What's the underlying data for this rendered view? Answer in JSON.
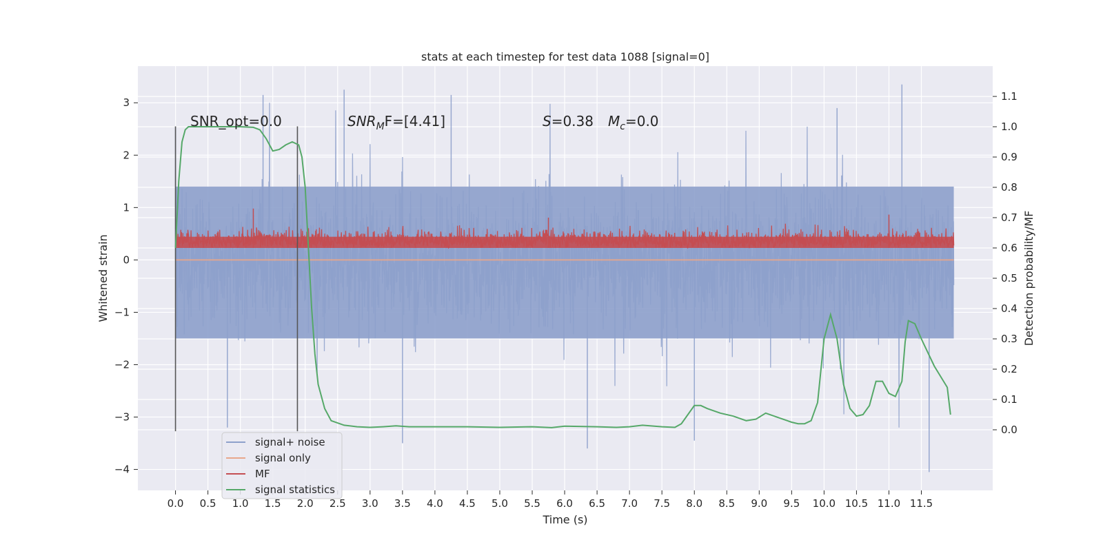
{
  "chart_data": {
    "type": "line",
    "title": "stats at each timestep for test data 1088 [signal=0]",
    "xlabel": "Time (s)",
    "ylabel": "Whitened strain",
    "ylabel_right": "Detection probability/MF",
    "xlim": [
      -0.58,
      12.6
    ],
    "ylim": [
      -4.4,
      3.7
    ],
    "ylim_right": [
      -0.2,
      1.2
    ],
    "x_ticks": [
      0.0,
      0.5,
      1.0,
      1.5,
      2.0,
      2.5,
      3.0,
      3.5,
      4.0,
      4.5,
      5.0,
      5.5,
      6.0,
      6.5,
      7.0,
      7.5,
      8.0,
      8.5,
      9.0,
      9.5,
      10.0,
      10.5,
      11.0,
      11.5
    ],
    "x_tick_labels": [
      "0.0",
      "0.5",
      "1.0",
      "1.5",
      "2.0",
      "2.5",
      "3.0",
      "3.5",
      "4.0",
      "4.5",
      "5.0",
      "5.5",
      "6.0",
      "6.5",
      "7.0",
      "7.5",
      "8.0",
      "8.5",
      "9.0",
      "9.5",
      "10.0",
      "10.5",
      "11.0",
      "11.5"
    ],
    "y_ticks": [
      3,
      2,
      1,
      0,
      -1,
      -2,
      -3,
      -4
    ],
    "y_tick_labels": [
      "3",
      "2",
      "1",
      "0",
      "−1",
      "−2",
      "−3",
      "−4"
    ],
    "y_right_ticks": [
      1.1,
      1.0,
      0.9,
      0.8,
      0.7,
      0.6,
      0.5,
      0.4,
      0.3,
      0.2,
      0.1,
      0.0
    ],
    "y_right_tick_labels": [
      "1.1",
      "1.0",
      "0.9",
      "0.8",
      "0.7",
      "0.6",
      "0.5",
      "0.4",
      "0.3",
      "0.2",
      "0.1",
      "0.0"
    ],
    "grid": true,
    "legend_position": "lower-left",
    "annotations": [
      {
        "id": "snr-opt",
        "text": "SNR_opt=0.0"
      },
      {
        "id": "snr-mf",
        "text": "SNR",
        "sub": "M",
        "rest": "F=[4.41]"
      },
      {
        "id": "s-stat",
        "text": "S",
        "rest": "=0.38"
      },
      {
        "id": "mc-stat",
        "text": "M",
        "sub": "c",
        "rest": "=0.0"
      }
    ],
    "vertical_markers": [
      {
        "x": 0.0,
        "y_range": [
          -3.27,
          2.55
        ]
      },
      {
        "x": 1.88,
        "y_range": [
          -3.27,
          2.55
        ]
      }
    ],
    "series": [
      {
        "name": "signal+ noise",
        "color": "#8da0cb",
        "axis": "left",
        "style": "dense-noise",
        "x_range": [
          0.0,
          12.0
        ],
        "core_band": [
          -1.5,
          1.4
        ],
        "spike_extremes": [
          {
            "x": 0.0,
            "y": 2.55
          },
          {
            "x": 1.35,
            "y": 3.15
          },
          {
            "x": 2.6,
            "y": 3.25
          },
          {
            "x": 3.5,
            "y": -3.5
          },
          {
            "x": 4.25,
            "y": 3.15
          },
          {
            "x": 6.35,
            "y": -3.6
          },
          {
            "x": 10.2,
            "y": 2.9
          },
          {
            "x": 11.2,
            "y": 3.35
          },
          {
            "x": 11.62,
            "y": -4.05
          },
          {
            "x": 8.0,
            "y": -3.45
          },
          {
            "x": 0.8,
            "y": -3.2
          }
        ]
      },
      {
        "name": "signal only",
        "color": "#e8a68a",
        "axis": "left",
        "x": [
          0.0,
          12.0
        ],
        "y": [
          0.0,
          0.0
        ]
      },
      {
        "name": "MF",
        "color": "#c44e52",
        "axis": "right",
        "style": "dense-noise",
        "x_range": [
          0.0,
          12.0
        ],
        "baseline": 0.6,
        "typical_peak": 0.67,
        "spike_extremes": [
          {
            "x": 1.2,
            "y": 0.73
          },
          {
            "x": 5.75,
            "y": 0.7
          },
          {
            "x": 11.0,
            "y": 0.71
          }
        ]
      },
      {
        "name": "signal statistics",
        "color": "#55a868",
        "axis": "right",
        "x": [
          0.0,
          0.05,
          0.1,
          0.15,
          0.2,
          0.3,
          0.5,
          0.8,
          1.0,
          1.2,
          1.3,
          1.4,
          1.5,
          1.6,
          1.7,
          1.8,
          1.9,
          1.95,
          2.0,
          2.05,
          2.1,
          2.15,
          2.2,
          2.3,
          2.4,
          2.6,
          2.8,
          3.0,
          3.2,
          3.4,
          3.6,
          4.0,
          4.5,
          5.0,
          5.5,
          5.8,
          6.0,
          6.5,
          6.8,
          7.0,
          7.2,
          7.5,
          7.7,
          7.8,
          7.9,
          8.0,
          8.1,
          8.2,
          8.4,
          8.6,
          8.8,
          8.95,
          9.1,
          9.3,
          9.5,
          9.6,
          9.7,
          9.8,
          9.9,
          10.0,
          10.1,
          10.2,
          10.3,
          10.4,
          10.5,
          10.6,
          10.7,
          10.8,
          10.9,
          11.0,
          11.1,
          11.2,
          11.25,
          11.3,
          11.4,
          11.5,
          11.7,
          11.9,
          11.95
        ],
        "y": [
          0.6,
          0.82,
          0.95,
          0.99,
          1.0,
          1.0,
          1.0,
          1.0,
          1.0,
          0.998,
          0.99,
          0.96,
          0.92,
          0.925,
          0.94,
          0.95,
          0.94,
          0.9,
          0.8,
          0.6,
          0.4,
          0.25,
          0.15,
          0.07,
          0.03,
          0.015,
          0.01,
          0.008,
          0.01,
          0.013,
          0.01,
          0.01,
          0.01,
          0.008,
          0.01,
          0.007,
          0.012,
          0.01,
          0.008,
          0.01,
          0.015,
          0.01,
          0.008,
          0.02,
          0.05,
          0.08,
          0.08,
          0.07,
          0.055,
          0.045,
          0.03,
          0.035,
          0.055,
          0.04,
          0.025,
          0.02,
          0.02,
          0.03,
          0.09,
          0.3,
          0.38,
          0.3,
          0.15,
          0.07,
          0.045,
          0.05,
          0.08,
          0.16,
          0.16,
          0.12,
          0.11,
          0.16,
          0.29,
          0.36,
          0.35,
          0.3,
          0.21,
          0.14,
          0.05
        ]
      }
    ],
    "legend": [
      {
        "label": "signal+ noise",
        "color": "#8da0cb"
      },
      {
        "label": "signal only",
        "color": "#e8a68a"
      },
      {
        "label": "MF",
        "color": "#c44e52"
      },
      {
        "label": "signal statistics",
        "color": "#55a868"
      }
    ]
  }
}
